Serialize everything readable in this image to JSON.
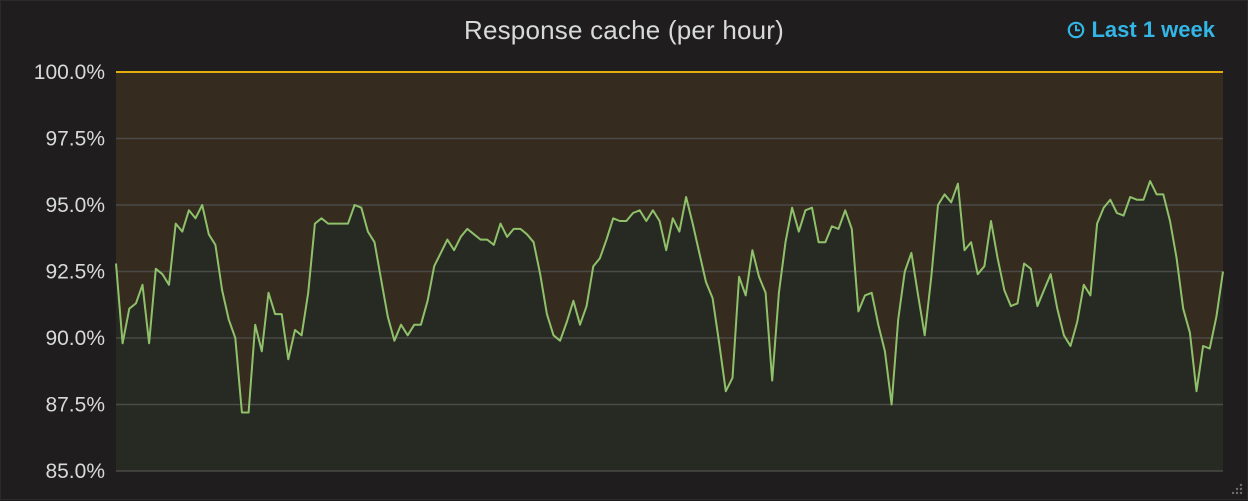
{
  "panel": {
    "title": "Response cache (per hour)",
    "time_range_label": "Last 1 week",
    "time_range_icon": "clock-icon",
    "resize_icon": "resize-handle-icon"
  },
  "colors": {
    "background": "#1f1d1d",
    "line": "#8fc16b",
    "threshold_line": "#e5ac0e",
    "threshold_fill": "#362b1f",
    "area_fill": "#262a23",
    "grid": "#4a4a48",
    "accent": "#33b5e5"
  },
  "chart_data": {
    "type": "area",
    "title": "Response cache (per hour)",
    "xlabel": "",
    "ylabel": "",
    "ylim": [
      85.0,
      100.0
    ],
    "y_ticks": [
      "100.0%",
      "97.5%",
      "95.0%",
      "92.5%",
      "90.0%",
      "87.5%",
      "85.0%"
    ],
    "y_tick_values": [
      100.0,
      97.5,
      95.0,
      92.5,
      90.0,
      87.5,
      85.0
    ],
    "grid": true,
    "threshold": 100.0,
    "series": [
      {
        "values": [
          92.8,
          89.8,
          91.1,
          91.3,
          92.0,
          89.8,
          92.6,
          92.4,
          92.0,
          94.3,
          94.0,
          94.8,
          94.5,
          95.0,
          93.9,
          93.5,
          91.8,
          90.7,
          90.0,
          87.2,
          87.2,
          90.5,
          89.5,
          91.7,
          90.9,
          90.9,
          89.2,
          90.3,
          90.1,
          91.7,
          94.3,
          94.5,
          94.3,
          94.3,
          94.3,
          94.3,
          95.0,
          94.9,
          94.0,
          93.6,
          92.2,
          90.8,
          89.9,
          90.5,
          90.1,
          90.5,
          90.5,
          91.4,
          92.7,
          93.2,
          93.7,
          93.3,
          93.8,
          94.1,
          93.9,
          93.7,
          93.7,
          93.5,
          94.3,
          93.8,
          94.1,
          94.1,
          93.9,
          93.6,
          92.4,
          90.9,
          90.1,
          89.9,
          90.6,
          91.4,
          90.5,
          91.2,
          92.7,
          93.0,
          93.7,
          94.5,
          94.4,
          94.4,
          94.7,
          94.8,
          94.4,
          94.8,
          94.4,
          93.3,
          94.5,
          94.0,
          95.3,
          94.3,
          93.2,
          92.1,
          91.5,
          89.8,
          88.0,
          88.5,
          92.3,
          91.6,
          93.3,
          92.3,
          91.7,
          88.4,
          91.7,
          93.6,
          94.9,
          94.0,
          94.8,
          94.9,
          93.6,
          93.6,
          94.2,
          94.1,
          94.8,
          94.1,
          91.0,
          91.6,
          91.7,
          90.5,
          89.5,
          87.5,
          90.7,
          92.5,
          93.2,
          91.6,
          90.1,
          92.3,
          95.0,
          95.4,
          95.1,
          95.8,
          93.3,
          93.6,
          92.4,
          92.7,
          94.4,
          93.0,
          91.8,
          91.2,
          91.3,
          92.8,
          92.6,
          91.2,
          91.8,
          92.4,
          91.1,
          90.1,
          89.7,
          90.6,
          92.0,
          91.6,
          94.3,
          94.9,
          95.2,
          94.7,
          94.6,
          95.3,
          95.2,
          95.2,
          95.9,
          95.4,
          95.4,
          94.4,
          93.0,
          91.1,
          90.2,
          88.0,
          89.7,
          89.6,
          90.8,
          92.5
        ]
      }
    ]
  }
}
